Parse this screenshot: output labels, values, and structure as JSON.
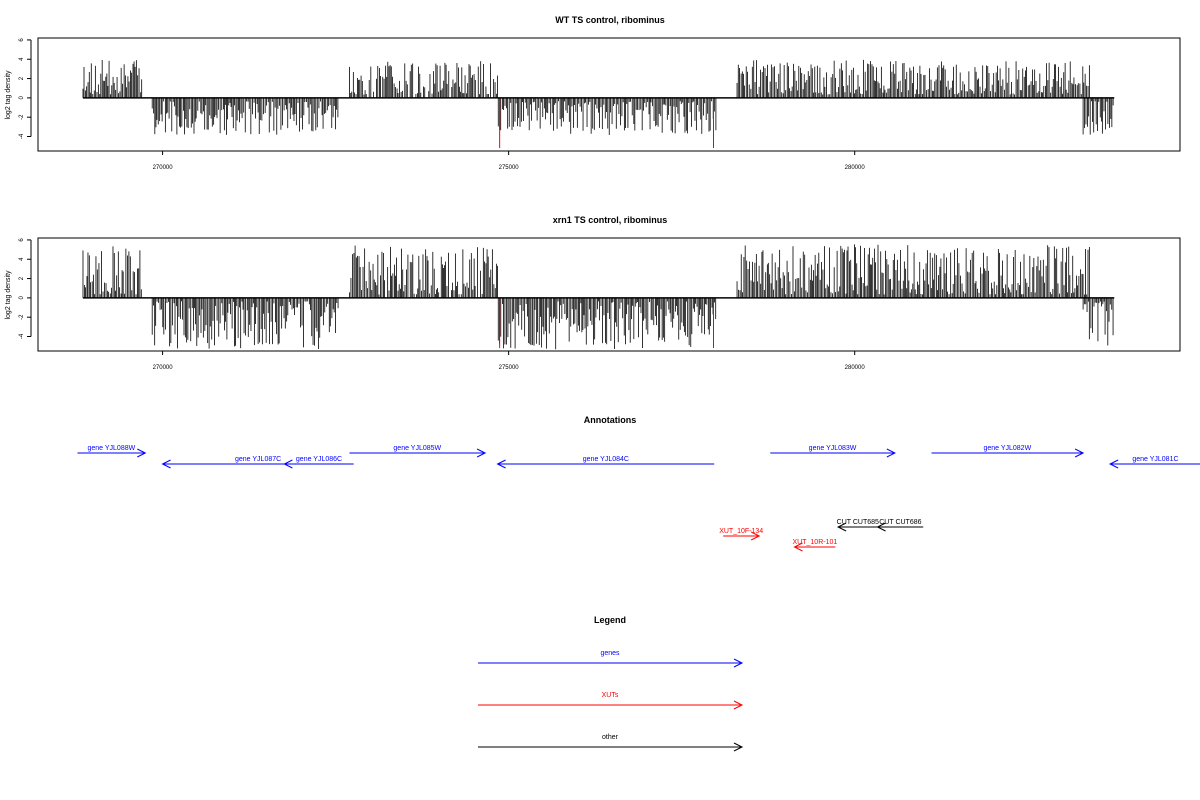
{
  "panels": [
    {
      "title": "WT TS control, ribominus",
      "ylabel": "log2 tag density",
      "yticks": [
        -4,
        -2,
        0,
        2,
        4,
        6
      ],
      "ylim": [
        -5.5,
        6.2
      ],
      "xticks": [
        270000,
        275000,
        280000
      ],
      "xlim": [
        268200,
        284700
      ],
      "seed": 11,
      "max_pos": 3.6,
      "max_neg": 3.5
    },
    {
      "title": "xrn1 TS control, ribominus",
      "ylabel": "log2 tag density",
      "yticks": [
        -4,
        -2,
        0,
        2,
        4,
        6
      ],
      "ylim": [
        -5.5,
        6.2
      ],
      "xticks": [
        270000,
        275000,
        280000
      ],
      "xlim": [
        268200,
        284700
      ],
      "seed": 29,
      "max_pos": 5.2,
      "max_neg": 5.0
    }
  ],
  "chart_data": [
    {
      "type": "bar",
      "title": "WT TS control, ribominus",
      "ylabel": "log2 tag density",
      "xlim": [
        268200,
        284700
      ],
      "ylim": [
        -5.5,
        6.2
      ],
      "grid": false,
      "baseline_range": [
        268850,
        283750
      ],
      "segments": [
        {
          "strand": "+",
          "x_range": [
            268850,
            269700
          ],
          "y_max": 2.8
        },
        {
          "strand": "-",
          "x_range": [
            269850,
            272550
          ],
          "y_min": -3.4
        },
        {
          "strand": "+",
          "x_range": [
            272700,
            274850
          ],
          "y_max": 3.5
        },
        {
          "strand": "-",
          "x_range": [
            274850,
            278000
          ],
          "y_min": -3.6
        },
        {
          "strand": "+",
          "x_range": [
            278300,
            283400
          ],
          "y_max": 4.0
        },
        {
          "strand": "-",
          "x_range": [
            283300,
            283750
          ],
          "y_min": -3.5
        }
      ],
      "highlighted_bars": [
        {
          "x": 274870,
          "y": -5.2,
          "color": "#ff0000"
        },
        {
          "x": 277960,
          "y": -5.2,
          "color": "#ff0000"
        }
      ]
    },
    {
      "type": "bar",
      "title": "xrn1 TS control, ribominus",
      "ylabel": "log2 tag density",
      "xlim": [
        268200,
        284700
      ],
      "ylim": [
        -5.5,
        6.2
      ],
      "grid": false,
      "baseline_range": [
        268850,
        283750
      ],
      "segments": [
        {
          "strand": "+",
          "x_range": [
            268850,
            269700
          ],
          "y_max": 3.8
        },
        {
          "strand": "-",
          "x_range": [
            269850,
            272550
          ],
          "y_min": -4.4
        },
        {
          "strand": "+",
          "x_range": [
            272700,
            274850
          ],
          "y_max": 4.8
        },
        {
          "strand": "-",
          "x_range": [
            274850,
            278000
          ],
          "y_min": -4.5
        },
        {
          "strand": "+",
          "x_range": [
            278300,
            283400
          ],
          "y_max": 5.9
        },
        {
          "strand": "-",
          "x_range": [
            283300,
            283750
          ],
          "y_min": -5.0
        }
      ],
      "highlighted_bars": [
        {
          "x": 274870,
          "y": -5.2,
          "color": "#ff0000"
        },
        {
          "x": 277960,
          "y": -5.2,
          "color": "#ff0000"
        }
      ]
    }
  ],
  "segment_layout": [
    {
      "sign": 1,
      "from": 268850,
      "to": 269700,
      "density": 1.0
    },
    {
      "sign": -1,
      "from": 269850,
      "to": 272550,
      "density": 1.0
    },
    {
      "sign": 1,
      "from": 272700,
      "to": 274850,
      "density": 0.9
    },
    {
      "sign": -1,
      "from": 274850,
      "to": 278000,
      "density": 1.0
    },
    {
      "sign": 1,
      "from": 278300,
      "to": 283400,
      "density": 1.0
    },
    {
      "sign": -1,
      "from": 283300,
      "to": 283750,
      "density": 1.0
    }
  ],
  "baseline": {
    "from": 268850,
    "to": 283750
  },
  "highlight_x": [
    274870,
    277960
  ],
  "annotations": {
    "title": "Annotations",
    "features": [
      {
        "label": "gene YJL088W",
        "from": 268770,
        "to": 269750,
        "strand": "+",
        "row": 0,
        "color": "#0000ff"
      },
      {
        "label": "gene YJL087C",
        "from": 270000,
        "to": 272760,
        "strand": "-",
        "row": 1,
        "color": "#0000ff"
      },
      {
        "label": "gene YJL086C",
        "from": 271760,
        "to": 272760,
        "strand": "-",
        "row": 1,
        "color": "#0000ff"
      },
      {
        "label": "gene YJL085W",
        "from": 272700,
        "to": 274660,
        "strand": "+",
        "row": 0,
        "color": "#0000ff"
      },
      {
        "label": "gene YJL084C",
        "from": 274840,
        "to": 277970,
        "strand": "-",
        "row": 1,
        "color": "#0000ff"
      },
      {
        "label": "gene YJL083W",
        "from": 278780,
        "to": 280580,
        "strand": "+",
        "row": 0,
        "color": "#0000ff"
      },
      {
        "label": "gene YJL082W",
        "from": 281110,
        "to": 283300,
        "strand": "+",
        "row": 0,
        "color": "#0000ff"
      },
      {
        "label": "gene YJL081C",
        "from": 283690,
        "to": 285000,
        "strand": "-",
        "row": 1,
        "color": "#0000ff"
      },
      {
        "label": "CUT CUT685",
        "from": 279760,
        "to": 280330,
        "strand": "-",
        "row": 2,
        "color": "#000000"
      },
      {
        "label": "CUT CUT686",
        "from": 280330,
        "to": 280990,
        "strand": "-",
        "row": 2,
        "color": "#000000"
      },
      {
        "label": "XUT_10F-134",
        "from": 278100,
        "to": 278620,
        "strand": "+",
        "row": 3,
        "color": "#ff0000"
      },
      {
        "label": "XUT_10R-101",
        "from": 279130,
        "to": 279720,
        "strand": "-",
        "row": 4,
        "color": "#ff0000"
      }
    ]
  },
  "legend": {
    "title": "Legend",
    "items": [
      {
        "label": "genes",
        "color": "#0000ff"
      },
      {
        "label": "XUTs",
        "color": "#ff0000"
      },
      {
        "label": "other",
        "color": "#000000"
      }
    ]
  }
}
